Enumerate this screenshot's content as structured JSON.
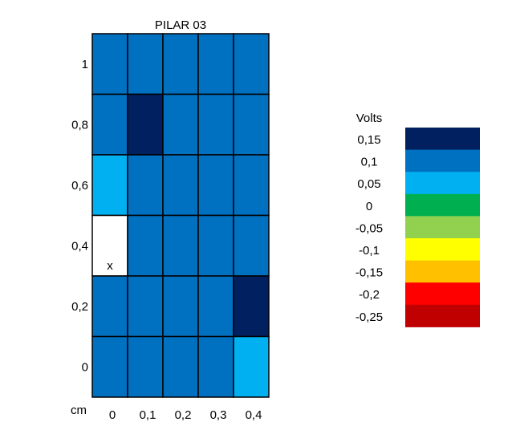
{
  "chart_data": {
    "type": "heatmap",
    "title": "PILAR 03",
    "xlabel": "cm",
    "x": [
      "0",
      "0,1",
      "0,2",
      "0,3",
      "0,4"
    ],
    "y": [
      "1",
      "0,8",
      "0,6",
      "0,4",
      "0,2",
      "0"
    ],
    "cells": [
      [
        "0,1",
        "0,1",
        "0,1",
        "0,1",
        "0,1"
      ],
      [
        "0,1",
        "0,15",
        "0,1",
        "0,1",
        "0,1"
      ],
      [
        "0,05",
        "0,1",
        "0,1",
        "0,1",
        "0,1"
      ],
      [
        "",
        "0,1",
        "0,1",
        "0,1",
        "0,1"
      ],
      [
        "0,1",
        "0,1",
        "0,1",
        "0,1",
        "0,15"
      ],
      [
        "0,1",
        "0,1",
        "0,1",
        "0,1",
        "0,05"
      ]
    ],
    "cell_marks": [
      {
        "row": 3,
        "col": 0,
        "text": "x"
      }
    ],
    "missing_color": "#ffffff",
    "legend": {
      "title": "Volts",
      "entries": [
        {
          "label": "0,15",
          "color": "#002060"
        },
        {
          "label": "0,1",
          "color": "#0070C0"
        },
        {
          "label": "0,05",
          "color": "#00B0F0"
        },
        {
          "label": "0",
          "color": "#00B050"
        },
        {
          "label": "-0,05",
          "color": "#92D050"
        },
        {
          "label": "-0,1",
          "color": "#FFFF00"
        },
        {
          "label": "-0,15",
          "color": "#FFC000"
        },
        {
          "label": "-0,2",
          "color": "#FF0000"
        },
        {
          "label": "-0,25",
          "color": "#C00000"
        }
      ]
    }
  }
}
